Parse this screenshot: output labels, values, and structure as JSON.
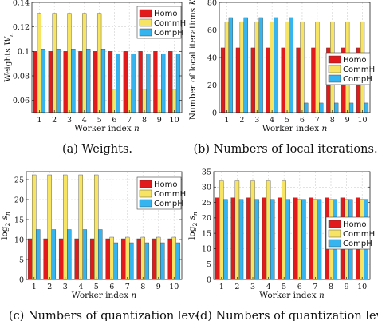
{
  "figure": {
    "colors": {
      "Homo": "#e31a1c",
      "CommH": "#f7e463",
      "CompH": "#35b4ef"
    },
    "legend_series": [
      "Homo",
      "CommH",
      "CompH"
    ]
  },
  "chart_data": [
    {
      "id": "a",
      "type": "bar",
      "caption": "(a)  Weights.",
      "xlabel": "Worker index n",
      "ylabel": "Weights W_n",
      "categories": [
        "1",
        "2",
        "3",
        "4",
        "5",
        "6",
        "7",
        "8",
        "9",
        "10"
      ],
      "ylim": [
        0.05,
        0.14
      ],
      "yticks": [
        0.06,
        0.08,
        0.1,
        0.12,
        0.14
      ],
      "ytick_labels": [
        "0.06",
        "0.08",
        "0.1",
        "0.12",
        "0.14"
      ],
      "grid": true,
      "legend": "top-right",
      "series": [
        {
          "name": "Homo",
          "values": [
            0.1,
            0.1,
            0.1,
            0.1,
            0.1,
            0.1,
            0.1,
            0.1,
            0.1,
            0.1
          ]
        },
        {
          "name": "CommH",
          "values": [
            0.131,
            0.131,
            0.131,
            0.131,
            0.131,
            0.069,
            0.069,
            0.069,
            0.069,
            0.069
          ]
        },
        {
          "name": "CompH",
          "values": [
            0.102,
            0.102,
            0.102,
            0.102,
            0.102,
            0.098,
            0.098,
            0.098,
            0.098,
            0.098
          ]
        }
      ]
    },
    {
      "id": "b",
      "type": "bar",
      "caption": "(b)  Numbers of local iterations.",
      "xlabel": "Worker index n",
      "ylabel": "Number of local iterations K_n",
      "categories": [
        "1",
        "2",
        "3",
        "4",
        "5",
        "6",
        "7",
        "8",
        "9",
        "10"
      ],
      "ylim": [
        0,
        80
      ],
      "yticks": [
        0,
        20,
        40,
        60,
        80
      ],
      "ytick_labels": [
        "0",
        "20",
        "40",
        "60",
        "80"
      ],
      "grid": true,
      "legend": "right",
      "series": [
        {
          "name": "Homo",
          "values": [
            47,
            47,
            47,
            47,
            47,
            47,
            47,
            47,
            47,
            47
          ]
        },
        {
          "name": "CommH",
          "values": [
            66,
            66,
            66,
            66,
            66,
            66,
            66,
            66,
            66,
            66
          ]
        },
        {
          "name": "CompH",
          "values": [
            69,
            69,
            69,
            69,
            69,
            7,
            7,
            7,
            7,
            7
          ]
        }
      ]
    },
    {
      "id": "c",
      "type": "bar",
      "caption": "(c)  Numbers of quantization lev-",
      "xlabel": "Worker index n",
      "ylabel": "log_2 s_n",
      "categories": [
        "1",
        "2",
        "3",
        "4",
        "5",
        "6",
        "7",
        "8",
        "9",
        "10"
      ],
      "ylim": [
        0,
        27
      ],
      "yticks": [
        0,
        5,
        10,
        15,
        20,
        25
      ],
      "ytick_labels": [
        "0",
        "5",
        "10",
        "15",
        "20",
        "25"
      ],
      "grid": true,
      "legend": "top-right",
      "series": [
        {
          "name": "Homo",
          "values": [
            10.2,
            10.2,
            10.2,
            10.2,
            10.2,
            10.2,
            10.2,
            10.2,
            10.2,
            10.2
          ]
        },
        {
          "name": "CommH",
          "values": [
            26.2,
            26.2,
            26.2,
            26.2,
            26.2,
            10.6,
            10.6,
            10.6,
            10.6,
            10.6
          ]
        },
        {
          "name": "CompH",
          "values": [
            12.5,
            12.5,
            12.5,
            12.5,
            12.5,
            9.2,
            9.2,
            9.2,
            9.2,
            9.2
          ]
        }
      ]
    },
    {
      "id": "d",
      "type": "bar",
      "caption": "(d)  Numbers of quantization lev-",
      "xlabel": "Worker index n",
      "ylabel": "log_2 s_n",
      "categories": [
        "1",
        "2",
        "3",
        "4",
        "5",
        "6",
        "7",
        "8",
        "9",
        "10"
      ],
      "ylim": [
        0,
        35
      ],
      "yticks": [
        0,
        5,
        10,
        15,
        20,
        25,
        30,
        35
      ],
      "ytick_labels": [
        "0",
        "5",
        "10",
        "15",
        "20",
        "25",
        "30",
        "35"
      ],
      "grid": true,
      "legend": "bottom-right",
      "series": [
        {
          "name": "Homo",
          "values": [
            26.5,
            26.5,
            26.5,
            26.5,
            26.5,
            26.5,
            26.5,
            26.5,
            26.5,
            26.5
          ]
        },
        {
          "name": "CommH",
          "values": [
            32,
            32,
            32,
            32,
            32,
            26,
            26,
            26,
            26,
            26
          ]
        },
        {
          "name": "CompH",
          "values": [
            26,
            26,
            26,
            26,
            26,
            26,
            26,
            26,
            26,
            26
          ]
        }
      ]
    }
  ]
}
